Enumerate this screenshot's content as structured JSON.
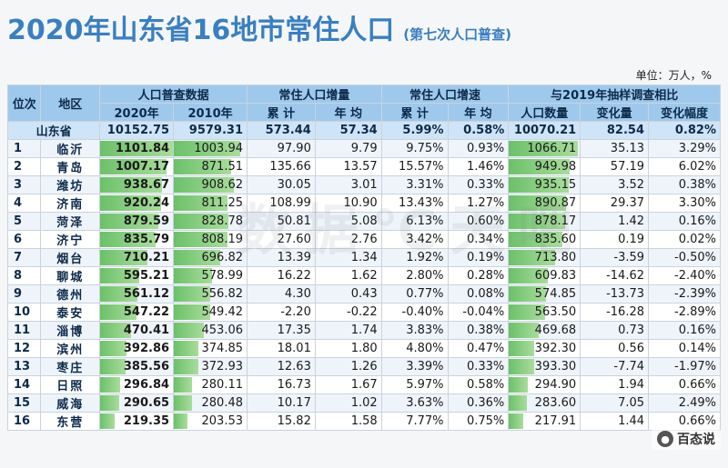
{
  "title": "2020年山东省16地市常住人口",
  "subtitle": "(第七次人口普查)",
  "unit": "单位：万人，%",
  "watermark": "数据℃天吧",
  "logo_text": "百态说",
  "headers": {
    "rank": "位次",
    "region": "地区",
    "census_group": "人口普查数据",
    "increase_group": "常住人口增量",
    "rate_group": "常住人口增速",
    "compare_group": "与2019年抽样调查相比",
    "y2020": "2020年",
    "y2010": "2010年",
    "total": "累 计",
    "annual": "年 均",
    "total2": "累 计",
    "annual2": "年 均",
    "pop": "人口数量",
    "change": "变化量",
    "change_pct": "变化幅度"
  },
  "province": {
    "name": "山东省",
    "p2020": "10152.75",
    "p2010": "9579.31",
    "inc_total": "573.44",
    "inc_annual": "57.34",
    "rate_total": "5.99%",
    "rate_annual": "0.58%",
    "p2019": "10070.21",
    "chg": "82.54",
    "chg_pct": "0.82%"
  },
  "rows": [
    {
      "rank": "1",
      "city": "临沂",
      "p2020": "1101.84",
      "p2010": "1003.94",
      "inc_total": "97.90",
      "inc_annual": "9.79",
      "rate_total": "9.75%",
      "rate_annual": "0.93%",
      "p2019": "1066.71",
      "chg": "35.13",
      "chg_pct": "3.29%"
    },
    {
      "rank": "2",
      "city": "青岛",
      "p2020": "1007.17",
      "p2010": "871.51",
      "inc_total": "135.66",
      "inc_annual": "13.57",
      "rate_total": "15.57%",
      "rate_annual": "1.46%",
      "p2019": "949.98",
      "chg": "57.19",
      "chg_pct": "6.02%"
    },
    {
      "rank": "3",
      "city": "潍坊",
      "p2020": "938.67",
      "p2010": "908.62",
      "inc_total": "30.05",
      "inc_annual": "3.01",
      "rate_total": "3.31%",
      "rate_annual": "0.33%",
      "p2019": "935.15",
      "chg": "3.52",
      "chg_pct": "0.38%"
    },
    {
      "rank": "4",
      "city": "济南",
      "p2020": "920.24",
      "p2010": "811.25",
      "inc_total": "108.99",
      "inc_annual": "10.90",
      "rate_total": "13.43%",
      "rate_annual": "1.27%",
      "p2019": "890.87",
      "chg": "29.37",
      "chg_pct": "3.30%"
    },
    {
      "rank": "5",
      "city": "菏泽",
      "p2020": "879.59",
      "p2010": "828.78",
      "inc_total": "50.81",
      "inc_annual": "5.08",
      "rate_total": "6.13%",
      "rate_annual": "0.60%",
      "p2019": "878.17",
      "chg": "1.42",
      "chg_pct": "0.16%"
    },
    {
      "rank": "6",
      "city": "济宁",
      "p2020": "835.79",
      "p2010": "808.19",
      "inc_total": "27.60",
      "inc_annual": "2.76",
      "rate_total": "3.42%",
      "rate_annual": "0.34%",
      "p2019": "835.60",
      "chg": "0.19",
      "chg_pct": "0.02%"
    },
    {
      "rank": "7",
      "city": "烟台",
      "p2020": "710.21",
      "p2010": "696.82",
      "inc_total": "13.39",
      "inc_annual": "1.34",
      "rate_total": "1.92%",
      "rate_annual": "0.19%",
      "p2019": "713.80",
      "chg": "-3.59",
      "chg_pct": "-0.50%"
    },
    {
      "rank": "8",
      "city": "聊城",
      "p2020": "595.21",
      "p2010": "578.99",
      "inc_total": "16.22",
      "inc_annual": "1.62",
      "rate_total": "2.80%",
      "rate_annual": "0.28%",
      "p2019": "609.83",
      "chg": "-14.62",
      "chg_pct": "-2.40%"
    },
    {
      "rank": "9",
      "city": "德州",
      "p2020": "561.12",
      "p2010": "556.82",
      "inc_total": "4.30",
      "inc_annual": "0.43",
      "rate_total": "0.77%",
      "rate_annual": "0.08%",
      "p2019": "574.85",
      "chg": "-13.73",
      "chg_pct": "-2.39%"
    },
    {
      "rank": "10",
      "city": "泰安",
      "p2020": "547.22",
      "p2010": "549.42",
      "inc_total": "-2.20",
      "inc_annual": "-0.22",
      "rate_total": "-0.40%",
      "rate_annual": "-0.04%",
      "p2019": "563.50",
      "chg": "-16.28",
      "chg_pct": "-2.89%"
    },
    {
      "rank": "11",
      "city": "淄博",
      "p2020": "470.41",
      "p2010": "453.06",
      "inc_total": "17.35",
      "inc_annual": "1.74",
      "rate_total": "3.83%",
      "rate_annual": "0.38%",
      "p2019": "469.68",
      "chg": "0.73",
      "chg_pct": "0.16%"
    },
    {
      "rank": "12",
      "city": "滨州",
      "p2020": "392.86",
      "p2010": "374.85",
      "inc_total": "18.01",
      "inc_annual": "1.80",
      "rate_total": "4.80%",
      "rate_annual": "0.47%",
      "p2019": "392.30",
      "chg": "0.56",
      "chg_pct": "0.14%"
    },
    {
      "rank": "13",
      "city": "枣庄",
      "p2020": "385.56",
      "p2010": "372.93",
      "inc_total": "12.63",
      "inc_annual": "1.26",
      "rate_total": "3.39%",
      "rate_annual": "0.33%",
      "p2019": "393.30",
      "chg": "-7.74",
      "chg_pct": "-1.97%"
    },
    {
      "rank": "14",
      "city": "日照",
      "p2020": "296.84",
      "p2010": "280.11",
      "inc_total": "16.73",
      "inc_annual": "1.67",
      "rate_total": "5.97%",
      "rate_annual": "0.58%",
      "p2019": "294.90",
      "chg": "1.94",
      "chg_pct": "0.66%"
    },
    {
      "rank": "15",
      "city": "威海",
      "p2020": "290.65",
      "p2010": "280.48",
      "inc_total": "10.17",
      "inc_annual": "1.02",
      "rate_total": "3.63%",
      "rate_annual": "0.36%",
      "p2019": "283.60",
      "chg": "7.05",
      "chg_pct": "2.49%"
    },
    {
      "rank": "16",
      "city": "东营",
      "p2020": "219.35",
      "p2010": "203.53",
      "inc_total": "15.82",
      "inc_annual": "1.58",
      "rate_total": "7.77%",
      "rate_annual": "0.75%",
      "p2019": "217.91",
      "chg": "1.44",
      "chg_pct": "0.66%"
    }
  ],
  "colors": {
    "accent": "#3a7fc0",
    "header_bg": "#9fc9ec",
    "bar": "#6cc06a"
  }
}
